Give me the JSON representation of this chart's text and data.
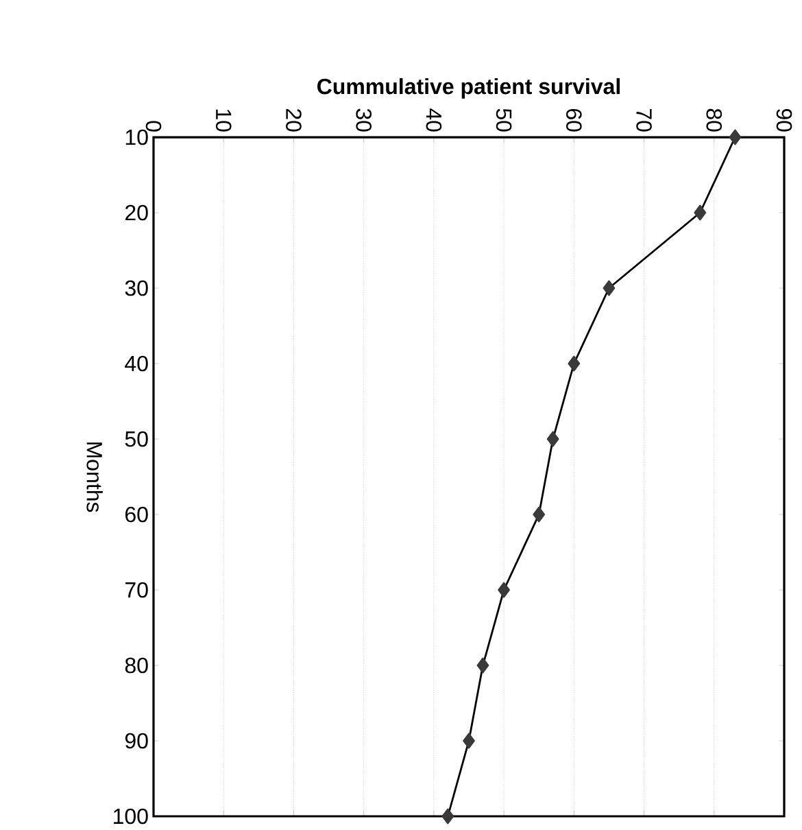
{
  "chart_data": {
    "type": "line",
    "xlabel": "Cummulative patient survival",
    "ylabel": "Months",
    "x": [
      83,
      78,
      65,
      60,
      57,
      55,
      50,
      47,
      45,
      42
    ],
    "series": [
      {
        "color": "#3a3a3a",
        "values": [
          10,
          20,
          30,
          40,
          50,
          60,
          70,
          80,
          90,
          100
        ]
      }
    ],
    "xlim": [
      0,
      90
    ],
    "xticks": [
      0,
      10,
      20,
      30,
      40,
      50,
      60,
      70,
      80,
      90
    ],
    "ylim": [
      100,
      10
    ],
    "yticks": [
      10,
      20,
      30,
      40,
      50,
      60,
      70,
      80,
      90,
      100
    ],
    "grid": "x",
    "marker": "diamond",
    "line_style": "solid"
  }
}
